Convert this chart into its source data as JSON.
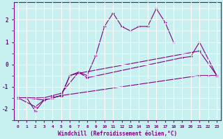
{
  "xlabel": "Windchill (Refroidissement éolien,°C)",
  "bg_color": "#c8f0f0",
  "line_color": "#800080",
  "grid_color": "#ffffff",
  "ylim": [
    -2.5,
    2.8
  ],
  "xlim": [
    -0.5,
    23.5
  ],
  "line1_x": [
    0,
    1,
    2,
    3,
    4,
    5,
    21,
    22,
    23
  ],
  "line1_y": [
    -1.5,
    -1.5,
    -2.1,
    -1.6,
    -1.5,
    -1.4,
    -0.5,
    -0.5,
    -0.5
  ],
  "line2_x": [
    0,
    2,
    3,
    4,
    5,
    6,
    7,
    21,
    23
  ],
  "line2_y": [
    -1.5,
    -1.9,
    -1.6,
    -1.5,
    -1.4,
    -0.5,
    -0.4,
    0.6,
    -0.5
  ],
  "line3_x": [
    0,
    3,
    4,
    5,
    7,
    8,
    19,
    20,
    21,
    23
  ],
  "line3_y": [
    -1.5,
    -1.5,
    -1.4,
    -1.3,
    -0.35,
    -0.6,
    0.3,
    0.35,
    1.0,
    -0.5
  ],
  "line4_x": [
    0,
    1,
    3,
    4,
    5,
    6,
    7,
    8,
    9,
    10,
    11,
    12,
    13,
    14,
    15,
    16,
    17,
    18
  ],
  "line4_y": [
    -1.5,
    -1.5,
    -1.6,
    -1.5,
    -1.4,
    -0.5,
    -0.35,
    -0.5,
    0.4,
    1.7,
    2.3,
    1.7,
    1.5,
    1.7,
    1.7,
    2.5,
    1.9,
    1.0
  ]
}
